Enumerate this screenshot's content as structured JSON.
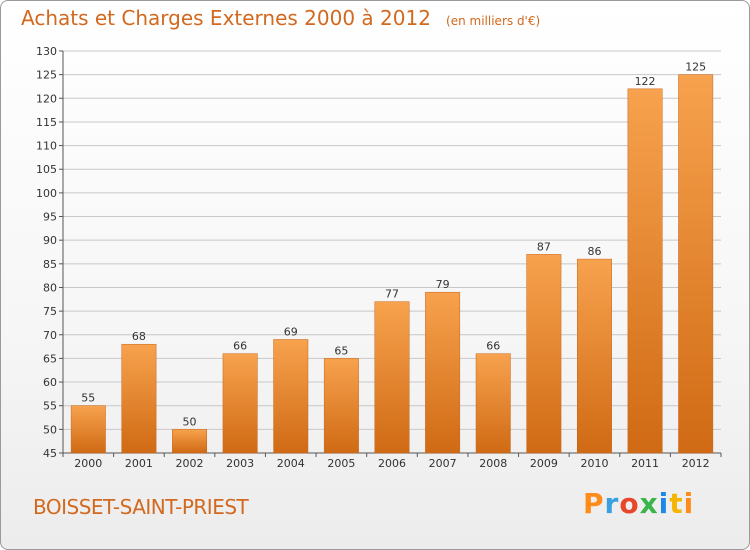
{
  "header": {
    "title": "Achats et Charges Externes 2000 à 2012",
    "subtitle": "(en milliers d'€)"
  },
  "footer": {
    "location": "BOISSET-SAINT-PRIEST",
    "logo_text": "Proxiti"
  },
  "colors": {
    "bar_top": "#f7a24e",
    "bar_bottom": "#d06a14",
    "title": "#d2691e",
    "gridline": "#c8c8c8"
  },
  "chart_data": {
    "type": "bar",
    "title": "Achats et Charges Externes 2000 à 2012",
    "subtitle": "(en milliers d'€)",
    "xlabel": "",
    "ylabel": "",
    "categories": [
      "2000",
      "2001",
      "2002",
      "2003",
      "2004",
      "2005",
      "2006",
      "2007",
      "2008",
      "2009",
      "2010",
      "2011",
      "2012"
    ],
    "values": [
      55,
      68,
      50,
      66,
      69,
      65,
      77,
      79,
      66,
      87,
      86,
      122,
      125
    ],
    "ylim": [
      45,
      130
    ],
    "yticks": [
      45,
      50,
      55,
      60,
      65,
      70,
      75,
      80,
      85,
      90,
      95,
      100,
      105,
      110,
      115,
      120,
      125,
      130
    ],
    "grid": true,
    "legend": "none"
  }
}
